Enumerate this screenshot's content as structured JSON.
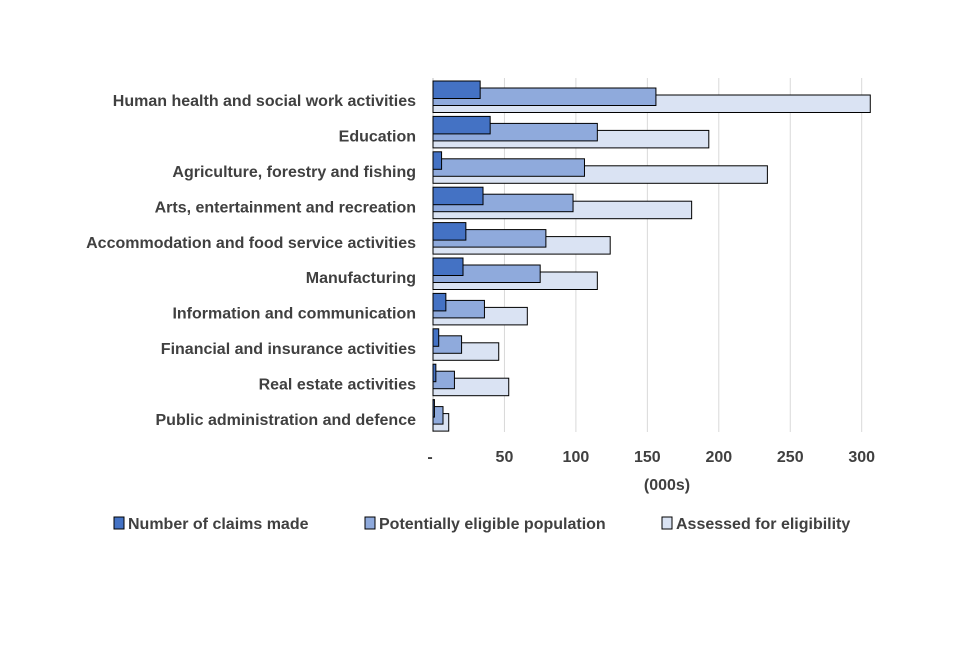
{
  "chart_data": {
    "type": "bar",
    "orientation": "horizontal",
    "categories": [
      "Human health and social work activities",
      "Education",
      "Agriculture, forestry and fishing",
      "Arts, entertainment and recreation",
      "Accommodation and food service activities",
      "Manufacturing",
      "Information and communication",
      "Financial and insurance activities",
      "Real estate activities",
      "Public administration and defence"
    ],
    "series": [
      {
        "name": "Number of claims made",
        "color": "#4472c4",
        "values": [
          33,
          40,
          6,
          35,
          23,
          21,
          9,
          4,
          2,
          1
        ]
      },
      {
        "name": "Potentially eligible population",
        "color": "#8faadc",
        "values": [
          156,
          115,
          106,
          98,
          79,
          75,
          36,
          20,
          15,
          7
        ]
      },
      {
        "name": "Assessed for eligibility",
        "color": "#dae3f3",
        "values": [
          306,
          193,
          234,
          181,
          124,
          115,
          66,
          46,
          53,
          11
        ]
      }
    ],
    "xlim": [
      0,
      300
    ],
    "xticks": [
      0,
      50,
      100,
      150,
      200,
      250,
      300
    ],
    "xtick_labels": [
      "-",
      "50",
      "100",
      "150",
      "200",
      "250",
      "300"
    ],
    "xlabel": "(000s)",
    "ylabel": "",
    "title": "",
    "grid": "vertical",
    "legend_position": "bottom"
  }
}
